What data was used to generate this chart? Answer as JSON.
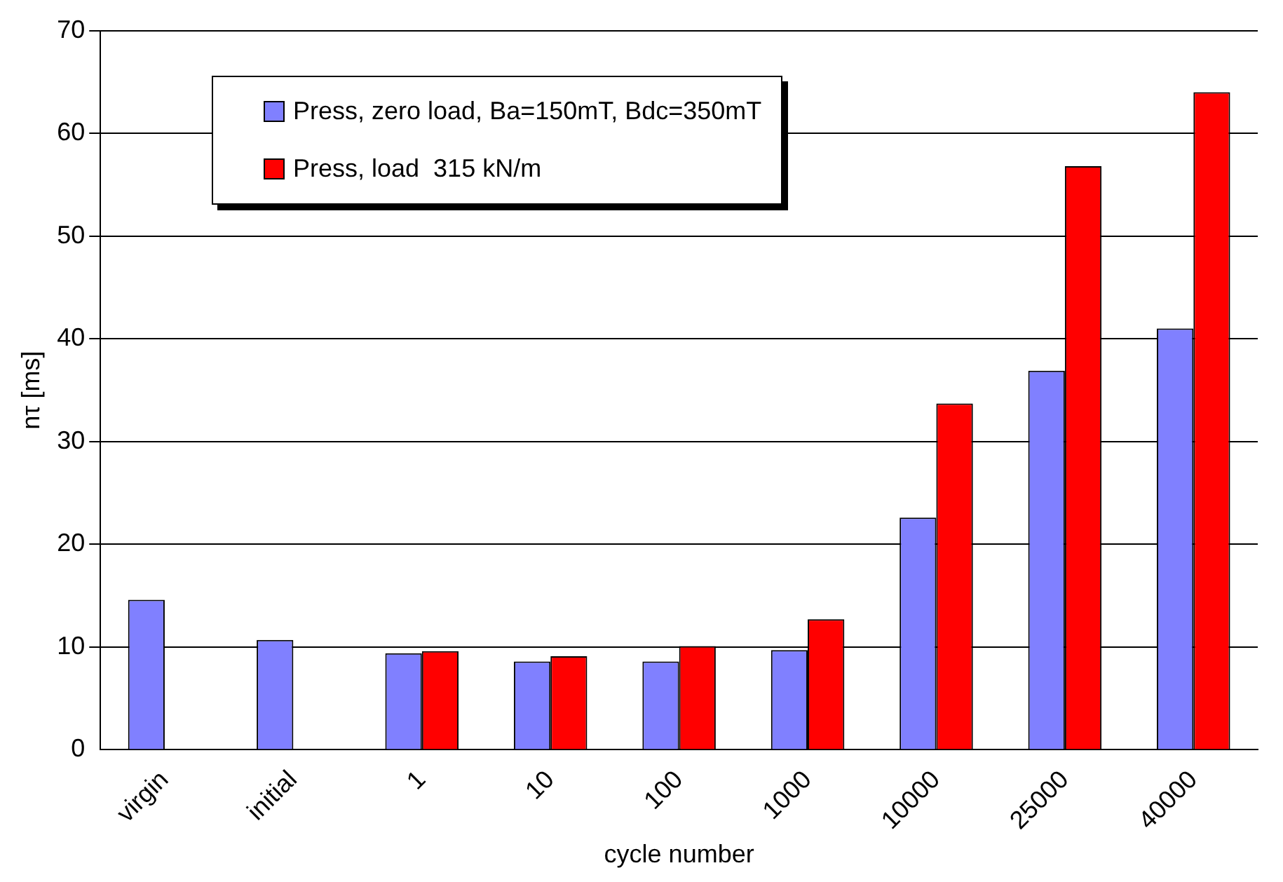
{
  "chart_data": {
    "type": "bar",
    "xlabel": "cycle number",
    "ylabel": "nτ [ms]",
    "categories": [
      "virgin",
      "initial",
      "1",
      "10",
      "100",
      "1000",
      "10000",
      "25000",
      "40000"
    ],
    "series": [
      {
        "name": "Press, zero load, Ba=150mT, Bdc=350mT",
        "color": "#8080ff",
        "values": [
          14.6,
          10.7,
          9.4,
          8.6,
          8.6,
          9.7,
          22.6,
          36.9,
          41.0
        ]
      },
      {
        "name": "Press, load  315 kN/m",
        "color": "#ff0000",
        "values": [
          null,
          null,
          9.6,
          9.1,
          10.1,
          12.7,
          33.7,
          56.8,
          64.0
        ]
      }
    ],
    "ylim": [
      0,
      70
    ],
    "yticks": [
      0,
      10,
      20,
      30,
      40,
      50,
      60,
      70
    ],
    "grid": "y",
    "legend": "top left"
  }
}
